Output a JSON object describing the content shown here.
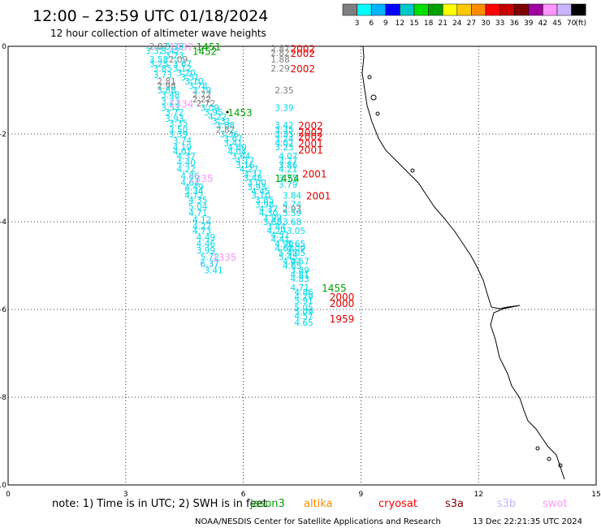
{
  "header": {
    "title": "12:00  – 23:59 UTC 01/18/2024",
    "subtitle": "12 hour collection of altimeter wave heights"
  },
  "colorbar": {
    "colors": [
      "#7f7f7f",
      "#00ffff",
      "#00b4ff",
      "#0000ff",
      "#00c8c8",
      "#00e000",
      "#00a000",
      "#ffff00",
      "#ffc800",
      "#ff8c00",
      "#ff0000",
      "#c80000",
      "#800000",
      "#a000a0",
      "#ff96ff",
      "#c8b4ff",
      "#000000"
    ],
    "labels": [
      "3",
      "6",
      "9",
      "12",
      "15",
      "18",
      "21",
      "24",
      "27",
      "30",
      "33",
      "36",
      "39",
      "42",
      "45",
      "70"
    ],
    "unit": "(ft)"
  },
  "chart_data": {
    "type": "scatter",
    "title": "12:00 – 23:59 UTC 01/18/2024",
    "subtitle": "12 hour collection of altimeter wave heights",
    "xlim": [
      0,
      15
    ],
    "ylim": [
      -10,
      0
    ],
    "xticks": [
      0,
      3,
      6,
      9,
      12,
      15
    ],
    "yticks": [
      0,
      -2,
      -4,
      -6,
      -8,
      -10
    ],
    "grid": true,
    "points": [
      {
        "x": 3.6,
        "y": 0.0,
        "v": "2.87"
      },
      {
        "x": 4.0,
        "y": 0.0,
        "v": "3.39"
      },
      {
        "x": 3.9,
        "y": -0.1,
        "v": "3.42"
      },
      {
        "x": 3.5,
        "y": -0.1,
        "v": "3.32"
      },
      {
        "x": 4.0,
        "y": -0.2,
        "v": "3.23"
      },
      {
        "x": 3.6,
        "y": -0.3,
        "v": "3.58"
      },
      {
        "x": 4.1,
        "y": -0.3,
        "v": "2.09"
      },
      {
        "x": 3.6,
        "y": -0.4,
        "v": "3.25"
      },
      {
        "x": 4.2,
        "y": -0.4,
        "v": "3.67"
      },
      {
        "x": 3.7,
        "y": -0.5,
        "v": "3.85"
      },
      {
        "x": 4.2,
        "y": -0.5,
        "v": "3.12"
      },
      {
        "x": 4.3,
        "y": -0.6,
        "v": "3.20"
      },
      {
        "x": 3.7,
        "y": -0.65,
        "v": "3.73"
      },
      {
        "x": 4.4,
        "y": -0.7,
        "v": "3.51"
      },
      {
        "x": 3.8,
        "y": -0.8,
        "v": "2.81"
      },
      {
        "x": 4.5,
        "y": -0.8,
        "v": "3.10"
      },
      {
        "x": 3.8,
        "y": -0.9,
        "v": "2.98"
      },
      {
        "x": 4.6,
        "y": -0.9,
        "v": "3.78"
      },
      {
        "x": 3.8,
        "y": -1.0,
        "v": "3.88"
      },
      {
        "x": 4.7,
        "y": -1.0,
        "v": "3.79"
      },
      {
        "x": 3.9,
        "y": -1.1,
        "v": "3.48"
      },
      {
        "x": 4.7,
        "y": -1.1,
        "v": "2.72"
      },
      {
        "x": 4.7,
        "y": -1.2,
        "v": "2.22"
      },
      {
        "x": 3.9,
        "y": -1.25,
        "v": "3.23"
      },
      {
        "x": 4.8,
        "y": -1.3,
        "v": "2.72"
      },
      {
        "x": 3.9,
        "y": -1.4,
        "v": "3.53"
      },
      {
        "x": 4.9,
        "y": -1.4,
        "v": "3.09"
      },
      {
        "x": 4.0,
        "y": -1.5,
        "v": "3.72"
      },
      {
        "x": 5.0,
        "y": -1.5,
        "v": "3.95"
      },
      {
        "x": 5.1,
        "y": -1.6,
        "v": "4.22"
      },
      {
        "x": 4.0,
        "y": -1.65,
        "v": "3.93"
      },
      {
        "x": 5.2,
        "y": -1.7,
        "v": "3.31"
      },
      {
        "x": 4.1,
        "y": -1.75,
        "v": "3.35"
      },
      {
        "x": 5.3,
        "y": -1.8,
        "v": "3.68"
      },
      {
        "x": 4.1,
        "y": -1.9,
        "v": "3.50"
      },
      {
        "x": 5.3,
        "y": -1.9,
        "v": "2.82"
      },
      {
        "x": 5.4,
        "y": -2.0,
        "v": "3.36"
      },
      {
        "x": 4.1,
        "y": -2.0,
        "v": "3.39"
      },
      {
        "x": 5.5,
        "y": -2.1,
        "v": "3.67"
      },
      {
        "x": 4.2,
        "y": -2.15,
        "v": "3.74"
      },
      {
        "x": 5.5,
        "y": -2.2,
        "v": "3.41"
      },
      {
        "x": 4.2,
        "y": -2.3,
        "v": "4.19"
      },
      {
        "x": 5.6,
        "y": -2.3,
        "v": "4.60"
      },
      {
        "x": 4.2,
        "y": -2.4,
        "v": "4.01"
      },
      {
        "x": 5.6,
        "y": -2.4,
        "v": "4.04"
      },
      {
        "x": 4.3,
        "y": -2.5,
        "v": "4.37"
      },
      {
        "x": 5.7,
        "y": -2.5,
        "v": "3.64"
      },
      {
        "x": 5.8,
        "y": -2.6,
        "v": "4.17"
      },
      {
        "x": 4.3,
        "y": -2.65,
        "v": "4.40"
      },
      {
        "x": 5.8,
        "y": -2.7,
        "v": "3.16"
      },
      {
        "x": 4.3,
        "y": -2.8,
        "v": "4.22"
      },
      {
        "x": 5.9,
        "y": -2.8,
        "v": "4.27"
      },
      {
        "x": 6.0,
        "y": -2.9,
        "v": "3.37"
      },
      {
        "x": 4.4,
        "y": -2.95,
        "v": "4.86"
      },
      {
        "x": 6.0,
        "y": -3.0,
        "v": "3.48"
      },
      {
        "x": 4.4,
        "y": -3.1,
        "v": "4.64"
      },
      {
        "x": 6.1,
        "y": -3.1,
        "v": "3.00"
      },
      {
        "x": 4.5,
        "y": -3.2,
        "v": "4.49"
      },
      {
        "x": 6.1,
        "y": -3.2,
        "v": "3.93"
      },
      {
        "x": 4.5,
        "y": -3.3,
        "v": "5.34"
      },
      {
        "x": 6.2,
        "y": -3.3,
        "v": "4.45"
      },
      {
        "x": 4.5,
        "y": -3.4,
        "v": "4.72"
      },
      {
        "x": 6.2,
        "y": -3.4,
        "v": "3.10"
      },
      {
        "x": 4.6,
        "y": -3.5,
        "v": "4.35"
      },
      {
        "x": 6.3,
        "y": -3.5,
        "v": "3.85"
      },
      {
        "x": 6.3,
        "y": -3.6,
        "v": "3.98"
      },
      {
        "x": 4.6,
        "y": -3.65,
        "v": "5.04"
      },
      {
        "x": 6.4,
        "y": -3.7,
        "v": "4.37"
      },
      {
        "x": 4.6,
        "y": -3.8,
        "v": "4.71"
      },
      {
        "x": 6.4,
        "y": -3.8,
        "v": "4.30"
      },
      {
        "x": 6.5,
        "y": -3.9,
        "v": "3.99"
      },
      {
        "x": 4.7,
        "y": -3.95,
        "v": "4.12"
      },
      {
        "x": 6.5,
        "y": -4.0,
        "v": "3.88"
      },
      {
        "x": 4.7,
        "y": -4.1,
        "v": "4.27"
      },
      {
        "x": 6.6,
        "y": -4.1,
        "v": "3.84"
      },
      {
        "x": 4.7,
        "y": -4.2,
        "v": "4.73"
      },
      {
        "x": 6.6,
        "y": -4.2,
        "v": "4.29"
      },
      {
        "x": 6.7,
        "y": -4.3,
        "v": "4.51"
      },
      {
        "x": 4.8,
        "y": -4.35,
        "v": "4.49"
      },
      {
        "x": 6.7,
        "y": -4.4,
        "v": "4.41"
      },
      {
        "x": 4.8,
        "y": -4.5,
        "v": "4.46"
      },
      {
        "x": 6.8,
        "y": -4.5,
        "v": "4.90"
      },
      {
        "x": 4.8,
        "y": -4.65,
        "v": "3.99"
      },
      {
        "x": 6.8,
        "y": -4.6,
        "v": "4.63"
      },
      {
        "x": 6.9,
        "y": -4.7,
        "v": "5.45"
      },
      {
        "x": 4.9,
        "y": -4.8,
        "v": "5.72"
      },
      {
        "x": 6.9,
        "y": -4.8,
        "v": "5.45"
      },
      {
        "x": 4.9,
        "y": -4.95,
        "v": "6.37"
      },
      {
        "x": 7.0,
        "y": -4.9,
        "v": "4.04"
      },
      {
        "x": 5.0,
        "y": -5.1,
        "v": "3.41"
      },
      {
        "x": 7.0,
        "y": -5.0,
        "v": "4.65"
      },
      {
        "x": 6.7,
        "y": -0.05,
        "v": "2.87"
      },
      {
        "x": 6.7,
        "y": -0.15,
        "v": "2.82"
      },
      {
        "x": 6.7,
        "y": -0.3,
        "v": "1.88"
      },
      {
        "x": 6.7,
        "y": -0.5,
        "v": "2.29"
      },
      {
        "x": 6.8,
        "y": -1.0,
        "v": "2.35"
      },
      {
        "x": 6.8,
        "y": -1.4,
        "v": "3.39"
      },
      {
        "x": 6.8,
        "y": -1.8,
        "v": "3.42"
      },
      {
        "x": 6.8,
        "y": -1.9,
        "v": "3.35"
      },
      {
        "x": 6.8,
        "y": -2.0,
        "v": "3.35"
      },
      {
        "x": 6.8,
        "y": -2.1,
        "v": "3.24"
      },
      {
        "x": 6.8,
        "y": -2.2,
        "v": "4.02"
      },
      {
        "x": 6.8,
        "y": -2.3,
        "v": "3.23"
      },
      {
        "x": 6.9,
        "y": -2.5,
        "v": "4.07"
      },
      {
        "x": 6.9,
        "y": -2.6,
        "v": "3.27"
      },
      {
        "x": 6.9,
        "y": -2.7,
        "v": "3.86"
      },
      {
        "x": 6.9,
        "y": -2.8,
        "v": "4.21"
      },
      {
        "x": 6.9,
        "y": -3.0,
        "v": "3.75"
      },
      {
        "x": 6.9,
        "y": -3.15,
        "v": "3.79"
      },
      {
        "x": 7.0,
        "y": -3.4,
        "v": "3.84"
      },
      {
        "x": 7.0,
        "y": -3.6,
        "v": "4.74"
      },
      {
        "x": 7.0,
        "y": -3.7,
        "v": "2.93"
      },
      {
        "x": 7.0,
        "y": -3.8,
        "v": "3.59"
      },
      {
        "x": 7.0,
        "y": -4.0,
        "v": "3.68"
      },
      {
        "x": 7.1,
        "y": -4.2,
        "v": "3.05"
      },
      {
        "x": 7.1,
        "y": -4.5,
        "v": "3.65"
      },
      {
        "x": 7.1,
        "y": -4.6,
        "v": "4.09"
      },
      {
        "x": 7.1,
        "y": -4.7,
        "v": "4.05"
      },
      {
        "x": 7.2,
        "y": -4.9,
        "v": "4.57"
      },
      {
        "x": 7.2,
        "y": -5.1,
        "v": "3.89"
      },
      {
        "x": 7.2,
        "y": -5.2,
        "v": "4.81"
      },
      {
        "x": 7.2,
        "y": -5.3,
        "v": "4.83"
      },
      {
        "x": 7.2,
        "y": -5.5,
        "v": "4.71"
      },
      {
        "x": 7.3,
        "y": -5.6,
        "v": "4.86"
      },
      {
        "x": 7.3,
        "y": -5.7,
        "v": "4.79"
      },
      {
        "x": 7.3,
        "y": -5.8,
        "v": "5.91"
      },
      {
        "x": 7.3,
        "y": -5.95,
        "v": "5.05"
      },
      {
        "x": 7.3,
        "y": -6.05,
        "v": "5.09"
      },
      {
        "x": 7.3,
        "y": -6.15,
        "v": "4.57"
      },
      {
        "x": 7.3,
        "y": -6.3,
        "v": "4.65"
      }
    ],
    "time_labels": [
      {
        "x": 4.8,
        "y": 0.0,
        "text": "1451"
      },
      {
        "x": 4.7,
        "y": -0.1,
        "text": "1452"
      },
      {
        "x": 5.6,
        "y": -1.5,
        "text": "1453"
      },
      {
        "x": 6.8,
        "y": -3.0,
        "text": "1454"
      },
      {
        "x": 8.0,
        "y": -5.5,
        "text": "1455"
      },
      {
        "x": 7.2,
        "y": -0.05,
        "text": "2002"
      },
      {
        "x": 7.2,
        "y": -0.15,
        "text": "2002"
      },
      {
        "x": 7.2,
        "y": -0.5,
        "text": "2002"
      },
      {
        "x": 7.4,
        "y": -1.8,
        "text": "2002"
      },
      {
        "x": 7.4,
        "y": -1.95,
        "text": "2002"
      },
      {
        "x": 7.4,
        "y": -2.05,
        "text": "2002"
      },
      {
        "x": 7.4,
        "y": -2.2,
        "text": "2001"
      },
      {
        "x": 7.4,
        "y": -2.35,
        "text": "2001"
      },
      {
        "x": 7.5,
        "y": -2.9,
        "text": "2001"
      },
      {
        "x": 7.6,
        "y": -3.4,
        "text": "2001"
      },
      {
        "x": 8.2,
        "y": -5.7,
        "text": "2000"
      },
      {
        "x": 8.2,
        "y": -5.85,
        "text": "2000"
      },
      {
        "x": 8.2,
        "y": -6.2,
        "text": "1959"
      },
      {
        "x": 4.1,
        "y": -0.0,
        "text": "1337"
      },
      {
        "x": 4.1,
        "y": -1.3,
        "text": "1334"
      },
      {
        "x": 4.6,
        "y": -3.0,
        "text": "1335"
      },
      {
        "x": 5.2,
        "y": -4.8,
        "text": "1335"
      }
    ]
  },
  "legend": {
    "note": "note:  1) Time is in UTC; 2) SWH is in feet",
    "items": [
      {
        "label": "jason3",
        "color": "#00a000"
      },
      {
        "label": "altika",
        "color": "#ff8c00"
      },
      {
        "label": "cryosat",
        "color": "#ff0000"
      },
      {
        "label": "s3a",
        "color": "#800000"
      },
      {
        "label": "s3b",
        "color": "#c8b4ff"
      },
      {
        "label": "swot",
        "color": "#ff96ff"
      }
    ]
  },
  "footer": {
    "credit": "NOAA/NESDIS Center for Satellite Applications and Research",
    "stamp": "13 Dec 22:21:35 UTC 2024"
  }
}
